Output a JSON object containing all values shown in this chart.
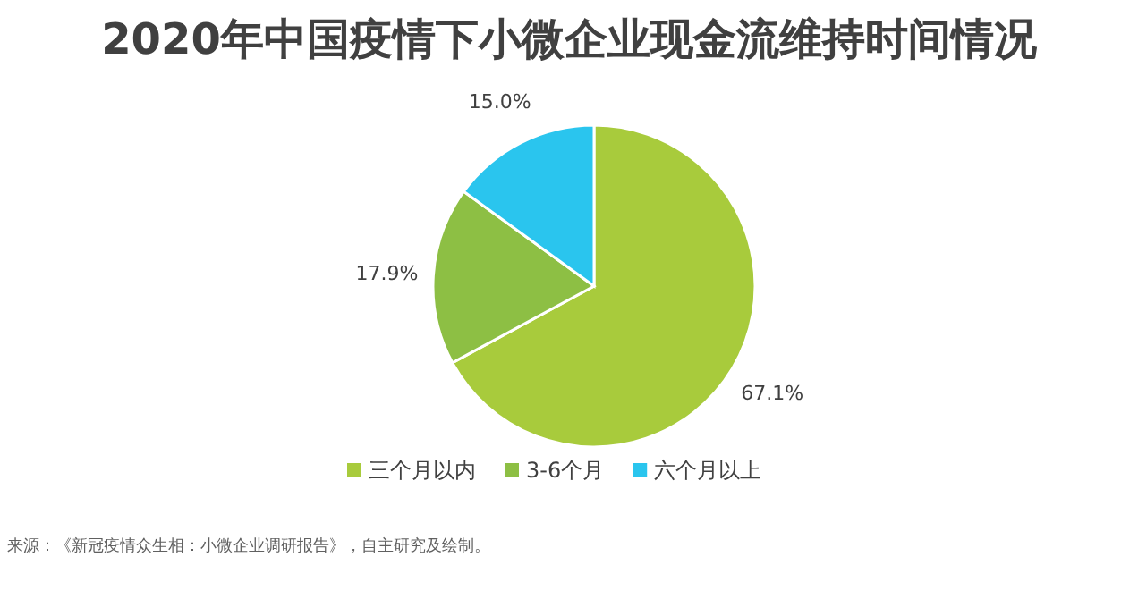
{
  "chart_data": {
    "type": "pie",
    "title": "2020年中国疫情下小微企业现金流维持时间情况",
    "categories": [
      "三个月以内",
      "3-6个月",
      "六个月以上"
    ],
    "values": [
      67.1,
      17.9,
      15.0
    ],
    "value_labels": [
      "67.1%",
      "17.9%",
      "15.0%"
    ],
    "colors": [
      "#a8cb3c",
      "#8dbf44",
      "#2ac5ee"
    ],
    "legend": "bottom",
    "annotations": [
      "来源：《新冠疫情众生相：小微企业调研报告》，自主研究及绘制。"
    ]
  }
}
